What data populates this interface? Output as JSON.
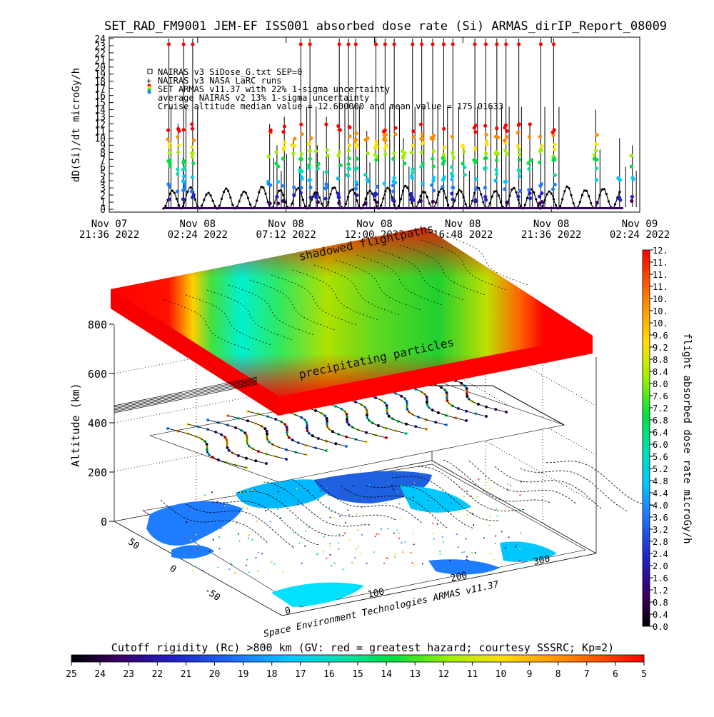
{
  "chart_data": [
    {
      "type": "scatter",
      "title": "SET_RAD_FM9001  JEM-EF ISS001 absorbed dose rate (Si) ARMAS_dirIP_Report_08009",
      "ylabel": "dD(Si)/dt microGy/h",
      "ylim": [
        0,
        24
      ],
      "y_ticks": [
        "0",
        "1",
        "2",
        "3",
        "4",
        "5",
        "6",
        "7",
        "8",
        "9",
        "10",
        "11",
        "12",
        "13",
        "14",
        "15",
        "16",
        "17",
        "18",
        "19",
        "20",
        "21",
        "22",
        "23",
        "24"
      ],
      "x_ticks": [
        {
          "line1": "Nov 07",
          "line2": "21:36 2022"
        },
        {
          "line1": "Nov 08",
          "line2": "02:24 2022"
        },
        {
          "line1": "Nov 08",
          "line2": "07:12 2022"
        },
        {
          "line1": "Nov 08",
          "line2": "12:00 2022"
        },
        {
          "line1": "Nov 08",
          "line2": "16:48 2022"
        },
        {
          "line1": "Nov 08",
          "line2": "21:36 2022"
        },
        {
          "line1": "Nov 09",
          "line2": "02:24 2022"
        }
      ],
      "legend": [
        {
          "text": "NAIRAS v3 SiDose_G.txt SEP=0",
          "marker": "open-square"
        },
        {
          "text": "NAIRAS v3 NASA LaRC runs",
          "marker": "cross"
        },
        {
          "text": "SET ARMAS v11.37 with 22% 1-sigma uncertainty",
          "marker": "multicolor-dot"
        },
        {
          "text": "average NAIRAS v2 13% 1-sigma uncertainty",
          "marker": "none"
        },
        {
          "text": "Cruise altitude median value = 12.600000 and mean value = 175.01633",
          "marker": "none"
        }
      ],
      "legend_position": "top-left",
      "spike_times_hours_from_start": [
        3.1,
        3.6,
        3.9,
        4.4,
        8.6,
        9.0,
        9.4,
        9.9,
        10.3,
        10.8,
        11.2,
        11.7,
        12.4,
        12.9,
        13.3,
        13.9,
        14.4,
        14.9,
        15.4,
        15.9,
        16.4,
        16.9,
        17.5,
        18.1,
        18.6,
        19.2,
        19.8,
        20.4,
        21.0,
        21.5,
        22.2,
        22.8,
        23.4,
        24.1,
        26.4,
        27.7,
        28.4
      ],
      "spike_peak_values": [
        24,
        12,
        24,
        24,
        12,
        9,
        13,
        10,
        24,
        24,
        9,
        13,
        24,
        24,
        24,
        11,
        24,
        24,
        24,
        10,
        24,
        24,
        24,
        24,
        24,
        9,
        24,
        24,
        24,
        24,
        24,
        12,
        24,
        24,
        14,
        10,
        9
      ],
      "background_peak_values": [
        2.5,
        3,
        2.2,
        2.8,
        2.4,
        3.1,
        2.6,
        2.9,
        2.3,
        3,
        2.7,
        2.5,
        2.9,
        3.2,
        2.4,
        2.8,
        2.6,
        3,
        2.5,
        2.9,
        2.7,
        2.4,
        3.1,
        2.6,
        2.8,
        2.5
      ]
    },
    {
      "type": "heatmap",
      "ylabel": "Altitude (km)",
      "zlim": [
        0,
        800
      ],
      "z_ticks": [
        "0",
        "200",
        "400",
        "600",
        "800"
      ],
      "x_ticks": [
        "0",
        "100",
        "200",
        "300"
      ],
      "y_ticks": [
        "50",
        "0",
        "-50"
      ],
      "labels": {
        "top_layer": "shadowed flightpaths",
        "mid_layer": "precipitating particles",
        "credit": "Space Environment Technologies ARMAS v11.37"
      },
      "colorbar_right": {
        "title": "flight absorbed dose rate microGy/h",
        "range": [
          0.0,
          12.0
        ],
        "ticks": [
          "0.0",
          "0.4",
          "0.8",
          "1.2",
          "1.6",
          "2.0",
          "2.4",
          "2.8",
          "3.2",
          "3.6",
          "4.0",
          "4.4",
          "4.8",
          "5.2",
          "5.6",
          "6.0",
          "6.4",
          "6.8",
          "7.2",
          "7.6",
          "8.0",
          "8.4",
          "8.8",
          "9.2",
          "9.6",
          "10.",
          "10.",
          "10.",
          "11.",
          "11.",
          "11.",
          "12."
        ]
      },
      "colorbar_bottom": {
        "title": "Cutoff rigidity (Rc) >800 km (GV: red = greatest hazard; courtesy SSSRC; Kp=2)",
        "ticks": [
          "25",
          "24",
          "23",
          "22",
          "21",
          "20",
          "19",
          "18",
          "17",
          "16",
          "15",
          "14",
          "13",
          "12",
          "11",
          "10",
          "9",
          "8",
          "7",
          "6",
          "5"
        ]
      }
    }
  ]
}
